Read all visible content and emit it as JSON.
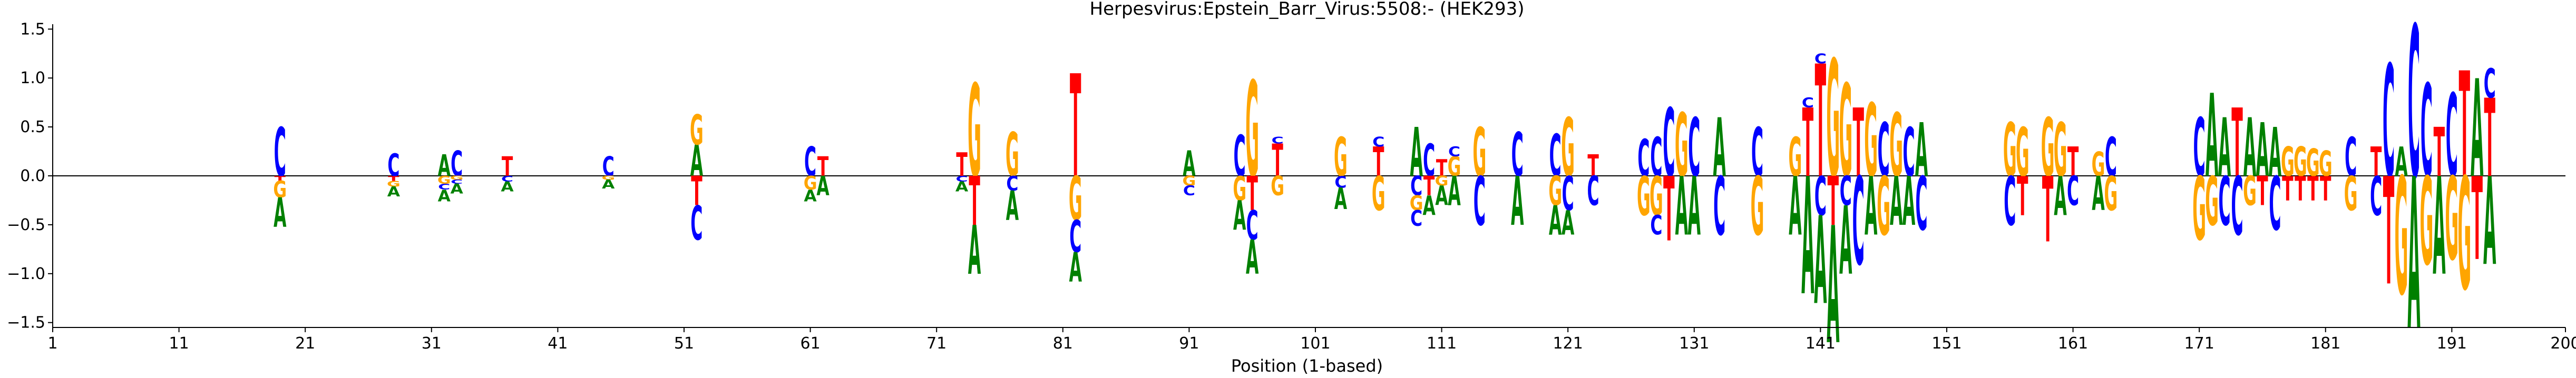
{
  "chart_data": {
    "type": "sequence-logo",
    "title": "Herpesvirus:Epstein_Barr_Virus:5508:-  (HEK293)",
    "xlabel": "Position (1-based)",
    "ylabel": "",
    "xlim": [
      1,
      200
    ],
    "ylim": [
      -1.55,
      1.55
    ],
    "x_ticks": [
      1,
      11,
      21,
      31,
      41,
      51,
      61,
      71,
      81,
      91,
      101,
      111,
      121,
      131,
      141,
      151,
      161,
      171,
      181,
      191,
      200
    ],
    "y_ticks": [
      -1.5,
      -1.0,
      -0.5,
      0.0,
      0.5,
      1.0,
      1.5
    ],
    "y_tick_labels": [
      "−1.5",
      "−1.0",
      "−0.5",
      "0.0",
      "0.5",
      "1.0",
      "1.5"
    ],
    "colors": {
      "A": "#008000",
      "C": "#0000ff",
      "G": "#ffa500",
      "T": "#ff0000",
      "baseline": "#000000"
    },
    "positions": [
      {
        "pos": 19,
        "up": [
          [
            "C",
            0.5
          ]
        ],
        "down": [
          [
            "T",
            0.05
          ],
          [
            "G",
            0.17
          ],
          [
            "A",
            0.3
          ]
        ]
      },
      {
        "pos": 28,
        "up": [
          [
            "C",
            0.23
          ]
        ],
        "down": [
          [
            "T",
            0.05
          ],
          [
            "G",
            0.06
          ],
          [
            "A",
            0.1
          ]
        ]
      },
      {
        "pos": 32,
        "up": [
          [
            "A",
            0.22
          ]
        ],
        "down": [
          [
            "G",
            0.08
          ],
          [
            "C",
            0.06
          ],
          [
            "A",
            0.12
          ]
        ]
      },
      {
        "pos": 33,
        "up": [
          [
            "C",
            0.26
          ]
        ],
        "down": [
          [
            "G",
            0.04
          ],
          [
            "C",
            0.04
          ],
          [
            "A",
            0.1
          ]
        ]
      },
      {
        "pos": 37,
        "up": [
          [
            "T",
            0.2
          ]
        ],
        "down": [
          [
            "C",
            0.06
          ],
          [
            "A",
            0.1
          ]
        ]
      },
      {
        "pos": 45,
        "up": [
          [
            "C",
            0.2
          ]
        ],
        "down": [
          [
            "G",
            0.04
          ],
          [
            "A",
            0.09
          ]
        ]
      },
      {
        "pos": 52,
        "up": [
          [
            "A",
            0.32
          ],
          [
            "G",
            0.31
          ]
        ],
        "down": [
          [
            "T",
            0.3
          ],
          [
            "C",
            0.35
          ]
        ]
      },
      {
        "pos": 61,
        "up": [
          [
            "C",
            0.3
          ]
        ],
        "down": [
          [
            "G",
            0.14
          ],
          [
            "A",
            0.12
          ]
        ]
      },
      {
        "pos": 62,
        "up": [
          [
            "T",
            0.2
          ]
        ],
        "down": [
          [
            "A",
            0.2
          ]
        ]
      },
      {
        "pos": 73,
        "up": [
          [
            "T",
            0.24
          ]
        ],
        "down": [
          [
            "C",
            0.06
          ],
          [
            "A",
            0.1
          ]
        ]
      },
      {
        "pos": 74,
        "up": [
          [
            "G",
            0.95
          ]
        ],
        "down": [
          [
            "T",
            0.5
          ],
          [
            "A",
            0.5
          ]
        ]
      },
      {
        "pos": 77,
        "up": [
          [
            "G",
            0.45
          ]
        ],
        "down": [
          [
            "C",
            0.15
          ],
          [
            "A",
            0.3
          ]
        ]
      },
      {
        "pos": 82,
        "up": [
          [
            "T",
            1.05
          ]
        ],
        "down": [
          [
            "G",
            0.45
          ],
          [
            "C",
            0.33
          ],
          [
            "A",
            0.3
          ]
        ]
      },
      {
        "pos": 91,
        "up": [
          [
            "A",
            0.26
          ]
        ],
        "down": [
          [
            "G",
            0.1
          ],
          [
            "C",
            0.1
          ]
        ]
      },
      {
        "pos": 95,
        "up": [
          [
            "C",
            0.42
          ]
        ],
        "down": [
          [
            "G",
            0.25
          ],
          [
            "A",
            0.3
          ]
        ]
      },
      {
        "pos": 96,
        "up": [
          [
            "G",
            0.98
          ]
        ],
        "down": [
          [
            "T",
            0.35
          ],
          [
            "C",
            0.3
          ],
          [
            "A",
            0.35
          ]
        ]
      },
      {
        "pos": 98,
        "up": [
          [
            "T",
            0.33
          ],
          [
            "C",
            0.07
          ]
        ],
        "down": [
          [
            "G",
            0.2
          ]
        ]
      },
      {
        "pos": 103,
        "up": [
          [
            "G",
            0.4
          ]
        ],
        "down": [
          [
            "C",
            0.12
          ],
          [
            "A",
            0.22
          ]
        ]
      },
      {
        "pos": 106,
        "up": [
          [
            "T",
            0.3
          ],
          [
            "C",
            0.1
          ]
        ],
        "down": [
          [
            "G",
            0.35
          ]
        ]
      },
      {
        "pos": 109,
        "up": [
          [
            "A",
            0.5
          ]
        ],
        "down": [
          [
            "C",
            0.2
          ],
          [
            "G",
            0.15
          ],
          [
            "C",
            0.16
          ]
        ]
      },
      {
        "pos": 110,
        "up": [
          [
            "C",
            0.33
          ]
        ],
        "down": [
          [
            "T",
            0.2
          ],
          [
            "A",
            0.2
          ]
        ]
      },
      {
        "pos": 111,
        "up": [
          [
            "T",
            0.17
          ]
        ],
        "down": [
          [
            "G",
            0.1
          ],
          [
            "A",
            0.2
          ]
        ]
      },
      {
        "pos": 112,
        "up": [
          [
            "G",
            0.2
          ],
          [
            "C",
            0.1
          ]
        ],
        "down": [
          [
            "A",
            0.3
          ]
        ]
      },
      {
        "pos": 114,
        "up": [
          [
            "G",
            0.5
          ]
        ],
        "down": [
          [
            "C",
            0.5
          ]
        ]
      },
      {
        "pos": 117,
        "up": [
          [
            "C",
            0.45
          ]
        ],
        "down": [
          [
            "A",
            0.5
          ]
        ]
      },
      {
        "pos": 120,
        "up": [
          [
            "C",
            0.43
          ]
        ],
        "down": [
          [
            "G",
            0.3
          ],
          [
            "A",
            0.3
          ]
        ]
      },
      {
        "pos": 121,
        "up": [
          [
            "G",
            0.6
          ]
        ],
        "down": [
          [
            "C",
            0.35
          ],
          [
            "A",
            0.25
          ]
        ]
      },
      {
        "pos": 123,
        "up": [
          [
            "T",
            0.22
          ]
        ],
        "down": [
          [
            "C",
            0.3
          ]
        ]
      },
      {
        "pos": 127,
        "up": [
          [
            "C",
            0.38
          ]
        ],
        "down": [
          [
            "G",
            0.4
          ]
        ]
      },
      {
        "pos": 128,
        "up": [
          [
            "C",
            0.4
          ]
        ],
        "down": [
          [
            "G",
            0.4
          ],
          [
            "C",
            0.2
          ]
        ]
      },
      {
        "pos": 129,
        "up": [
          [
            "C",
            0.7
          ]
        ],
        "down": [
          [
            "T",
            0.66
          ]
        ]
      },
      {
        "pos": 130,
        "up": [
          [
            "G",
            0.65
          ]
        ],
        "down": [
          [
            "A",
            0.6
          ]
        ]
      },
      {
        "pos": 131,
        "up": [
          [
            "C",
            0.6
          ]
        ],
        "down": [
          [
            "A",
            0.6
          ]
        ]
      },
      {
        "pos": 133,
        "up": [
          [
            "A",
            0.6
          ]
        ],
        "down": [
          [
            "C",
            0.6
          ]
        ]
      },
      {
        "pos": 136,
        "up": [
          [
            "C",
            0.5
          ]
        ],
        "down": [
          [
            "G",
            0.6
          ]
        ]
      },
      {
        "pos": 139,
        "up": [
          [
            "G",
            0.4
          ]
        ],
        "down": [
          [
            "A",
            0.6
          ]
        ]
      },
      {
        "pos": 140,
        "up": [
          [
            "T",
            0.7
          ],
          [
            "C",
            0.1
          ]
        ],
        "down": [
          [
            "A",
            1.2
          ]
        ]
      },
      {
        "pos": 141,
        "up": [
          [
            "T",
            1.15
          ],
          [
            "C",
            0.1
          ]
        ],
        "down": [
          [
            "C",
            0.4
          ],
          [
            "A",
            0.9
          ]
        ]
      },
      {
        "pos": 142,
        "up": [
          [
            "G",
            1.2
          ]
        ],
        "down": [
          [
            "T",
            0.5
          ],
          [
            "A",
            1.2
          ]
        ]
      },
      {
        "pos": 143,
        "up": [
          [
            "G",
            0.95
          ]
        ],
        "down": [
          [
            "C",
            0.3
          ],
          [
            "A",
            0.7
          ]
        ]
      },
      {
        "pos": 144,
        "up": [
          [
            "T",
            0.7
          ]
        ],
        "down": [
          [
            "C",
            0.9
          ]
        ]
      },
      {
        "pos": 145,
        "up": [
          [
            "G",
            0.75
          ]
        ],
        "down": [
          [
            "A",
            0.6
          ]
        ]
      },
      {
        "pos": 146,
        "up": [
          [
            "C",
            0.55
          ]
        ],
        "down": [
          [
            "G",
            0.6
          ]
        ]
      },
      {
        "pos": 147,
        "up": [
          [
            "G",
            0.65
          ]
        ],
        "down": [
          [
            "A",
            0.5
          ]
        ]
      },
      {
        "pos": 148,
        "up": [
          [
            "C",
            0.5
          ]
        ],
        "down": [
          [
            "A",
            0.5
          ]
        ]
      },
      {
        "pos": 149,
        "up": [
          [
            "A",
            0.55
          ]
        ],
        "down": [
          [
            "C",
            0.55
          ]
        ]
      },
      {
        "pos": 156,
        "up": [
          [
            "G",
            0.55
          ]
        ],
        "down": [
          [
            "C",
            0.5
          ]
        ]
      },
      {
        "pos": 157,
        "up": [
          [
            "G",
            0.5
          ]
        ],
        "down": [
          [
            "T",
            0.4
          ]
        ]
      },
      {
        "pos": 159,
        "up": [
          [
            "G",
            0.6
          ]
        ],
        "down": [
          [
            "T",
            0.67
          ]
        ]
      },
      {
        "pos": 160,
        "up": [
          [
            "G",
            0.55
          ]
        ],
        "down": [
          [
            "A",
            0.4
          ]
        ]
      },
      {
        "pos": 161,
        "up": [
          [
            "T",
            0.3
          ]
        ],
        "down": [
          [
            "C",
            0.3
          ]
        ]
      },
      {
        "pos": 163,
        "up": [
          [
            "G",
            0.25
          ]
        ],
        "down": [
          [
            "A",
            0.35
          ]
        ]
      },
      {
        "pos": 164,
        "up": [
          [
            "C",
            0.4
          ]
        ],
        "down": [
          [
            "G",
            0.35
          ]
        ]
      },
      {
        "pos": 171,
        "up": [
          [
            "C",
            0.6
          ]
        ],
        "down": [
          [
            "G",
            0.65
          ]
        ]
      },
      {
        "pos": 172,
        "up": [
          [
            "A",
            0.85
          ]
        ],
        "down": [
          [
            "G",
            0.5
          ]
        ]
      },
      {
        "pos": 173,
        "up": [
          [
            "A",
            0.6
          ]
        ],
        "down": [
          [
            "C",
            0.5
          ]
        ]
      },
      {
        "pos": 174,
        "up": [
          [
            "T",
            0.7
          ]
        ],
        "down": [
          [
            "C",
            0.6
          ]
        ]
      },
      {
        "pos": 175,
        "up": [
          [
            "A",
            0.6
          ]
        ],
        "down": [
          [
            "G",
            0.3
          ]
        ]
      },
      {
        "pos": 176,
        "up": [
          [
            "A",
            0.55
          ]
        ],
        "down": [
          [
            "T",
            0.3
          ]
        ]
      },
      {
        "pos": 177,
        "up": [
          [
            "A",
            0.5
          ]
        ],
        "down": [
          [
            "C",
            0.55
          ]
        ]
      },
      {
        "pos": 178,
        "up": [
          [
            "G",
            0.3
          ]
        ],
        "down": [
          [
            "T",
            0.25
          ]
        ]
      },
      {
        "pos": 179,
        "up": [
          [
            "G",
            0.3
          ]
        ],
        "down": [
          [
            "T",
            0.25
          ]
        ]
      },
      {
        "pos": 180,
        "up": [
          [
            "G",
            0.28
          ]
        ],
        "down": [
          [
            "T",
            0.25
          ]
        ]
      },
      {
        "pos": 181,
        "up": [
          [
            "G",
            0.26
          ]
        ],
        "down": [
          [
            "T",
            0.25
          ]
        ]
      },
      {
        "pos": 183,
        "up": [
          [
            "C",
            0.4
          ]
        ],
        "down": [
          [
            "G",
            0.35
          ]
        ]
      },
      {
        "pos": 185,
        "up": [
          [
            "T",
            0.3
          ]
        ],
        "down": [
          [
            "C",
            0.4
          ]
        ]
      },
      {
        "pos": 186,
        "up": [
          [
            "C",
            1.15
          ]
        ],
        "down": [
          [
            "T",
            1.1
          ]
        ]
      },
      {
        "pos": 187,
        "up": [
          [
            "A",
            0.3
          ]
        ],
        "down": [
          [
            "G",
            1.2
          ]
        ]
      },
      {
        "pos": 188,
        "up": [
          [
            "C",
            1.55
          ]
        ],
        "down": [
          [
            "A",
            1.55
          ]
        ]
      },
      {
        "pos": 189,
        "up": [
          [
            "C",
            0.95
          ]
        ],
        "down": [
          [
            "G",
            0.9
          ]
        ]
      },
      {
        "pos": 190,
        "up": [
          [
            "T",
            0.5
          ]
        ],
        "down": [
          [
            "A",
            1.0
          ]
        ]
      },
      {
        "pos": 191,
        "up": [
          [
            "C",
            0.85
          ]
        ],
        "down": [
          [
            "G",
            0.85
          ]
        ]
      },
      {
        "pos": 192,
        "up": [
          [
            "T",
            1.08
          ]
        ],
        "down": [
          [
            "G",
            1.15
          ]
        ]
      },
      {
        "pos": 193,
        "up": [
          [
            "A",
            1.0
          ]
        ],
        "down": [
          [
            "T",
            0.85
          ]
        ]
      },
      {
        "pos": 194,
        "up": [
          [
            "T",
            0.8
          ],
          [
            "C",
            0.3
          ]
        ],
        "down": [
          [
            "A",
            0.9
          ]
        ]
      }
    ]
  }
}
